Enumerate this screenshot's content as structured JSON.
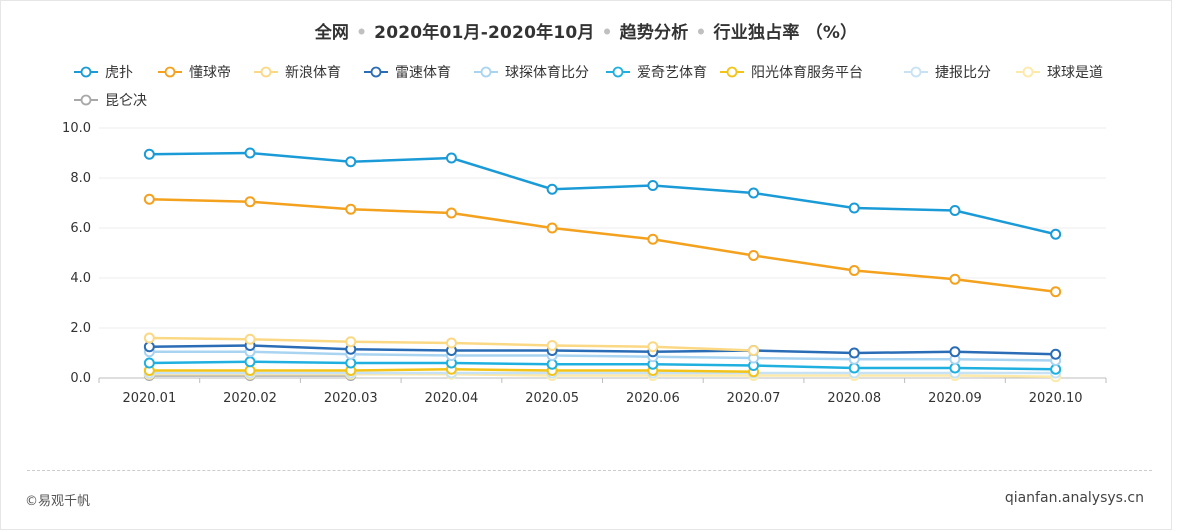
{
  "title": {
    "scope": "全网",
    "period": "2020年01月-2020年10月",
    "analysis": "趋势分析",
    "metric": "行业独占率 （%）",
    "separator": "•"
  },
  "footer": {
    "copyright": "©易观千帆",
    "site": "qianfan.analysys.cn"
  },
  "chart_data": {
    "type": "line",
    "title": "全网 • 2020年01月-2020年10月 • 趋势分析 • 行业独占率 （%）",
    "x": [
      "2020.01",
      "2020.02",
      "2020.03",
      "2020.04",
      "2020.05",
      "2020.06",
      "2020.07",
      "2020.08",
      "2020.09",
      "2020.10"
    ],
    "ylim": [
      0,
      10
    ],
    "yticks": [
      "0.0",
      "2.0",
      "4.0",
      "6.0",
      "8.0",
      "10.0"
    ],
    "grid": true,
    "legend_position": "top-left",
    "series": [
      {
        "name": "虎扑",
        "color": "#1a9bd7",
        "values": [
          8.95,
          9.0,
          8.65,
          8.8,
          7.55,
          7.7,
          7.4,
          6.8,
          6.7,
          5.75
        ]
      },
      {
        "name": "懂球帝",
        "color": "#f4a11d",
        "values": [
          7.15,
          7.05,
          6.75,
          6.6,
          6.0,
          5.55,
          4.9,
          4.3,
          3.95,
          3.45
        ]
      },
      {
        "name": "新浪体育",
        "color": "#fbd884",
        "values": [
          1.6,
          1.55,
          1.45,
          1.4,
          1.3,
          1.25,
          1.1,
          null,
          null,
          null
        ]
      },
      {
        "name": "雷速体育",
        "color": "#2a6cb5",
        "values": [
          1.25,
          1.3,
          1.15,
          1.1,
          1.1,
          1.05,
          1.1,
          1.0,
          1.05,
          0.95
        ]
      },
      {
        "name": "球探体育比分",
        "color": "#a9d4f1",
        "values": [
          1.05,
          1.05,
          0.95,
          0.9,
          0.9,
          0.85,
          0.8,
          0.75,
          0.75,
          0.7
        ]
      },
      {
        "name": "爱奇艺体育",
        "color": "#1fb0e0",
        "values": [
          0.6,
          0.65,
          0.6,
          0.6,
          0.55,
          0.55,
          0.5,
          0.4,
          0.4,
          0.35
        ]
      },
      {
        "name": "阳光体育服务平台",
        "color": "#f3c318",
        "values": [
          0.3,
          0.3,
          0.3,
          0.35,
          0.3,
          0.3,
          0.25,
          null,
          null,
          null
        ]
      },
      {
        "name": "捷报比分",
        "color": "#c6e2f4",
        "values": [
          0.2,
          0.2,
          0.2,
          0.2,
          0.2,
          0.2,
          0.2,
          0.2,
          0.2,
          0.2
        ]
      },
      {
        "name": "球球是道",
        "color": "#fde9a8",
        "values": [
          0.15,
          0.15,
          0.15,
          0.15,
          0.1,
          0.1,
          0.1,
          0.1,
          0.1,
          0.05
        ]
      },
      {
        "name": "昆仑决",
        "color": "#a8a8a8",
        "values": [
          0.1,
          0.1,
          0.1,
          null,
          null,
          null,
          null,
          null,
          null,
          null
        ]
      }
    ]
  }
}
